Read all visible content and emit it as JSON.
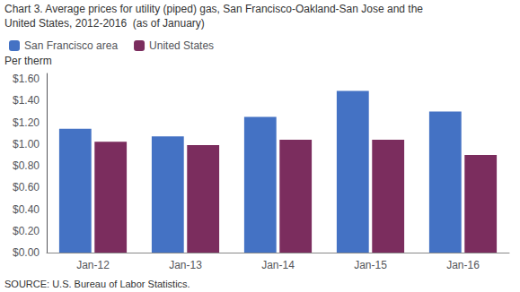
{
  "chart_data": {
    "type": "bar",
    "title": "Chart 3. Average prices for utility (piped) gas, San Francisco-Oakland-San Jose and the",
    "subtitle": "United States, 2012-2016  (as of January)",
    "ylabel": "Per therm",
    "annotations": [
      "SOURCE: U.S. Bureau of Labor Statistics."
    ],
    "categories": [
      "Jan-12",
      "Jan-13",
      "Jan-14",
      "Jan-15",
      "Jan-16"
    ],
    "series": [
      {
        "name": "San Francisco area",
        "color": "#4472C4",
        "values": [
          1.14,
          1.07,
          1.25,
          1.49,
          1.3
        ]
      },
      {
        "name": "United States",
        "color": "#7B2D5E",
        "values": [
          1.02,
          0.99,
          1.04,
          1.04,
          0.9
        ]
      }
    ],
    "ylim": [
      0.0,
      1.65
    ],
    "yticks": [
      {
        "value": 0.0,
        "label": "$0.00"
      },
      {
        "value": 0.2,
        "label": "$0.20"
      },
      {
        "value": 0.4,
        "label": "$0.40"
      },
      {
        "value": 0.6,
        "label": "$0.60"
      },
      {
        "value": 0.8,
        "label": "$0.80"
      },
      {
        "value": 1.0,
        "label": "$1.00"
      },
      {
        "value": 1.2,
        "label": "$1.20"
      },
      {
        "value": 1.4,
        "label": "$1.40"
      },
      {
        "value": 1.6,
        "label": "$1.60"
      }
    ],
    "grid": false,
    "legend": "upper left"
  }
}
